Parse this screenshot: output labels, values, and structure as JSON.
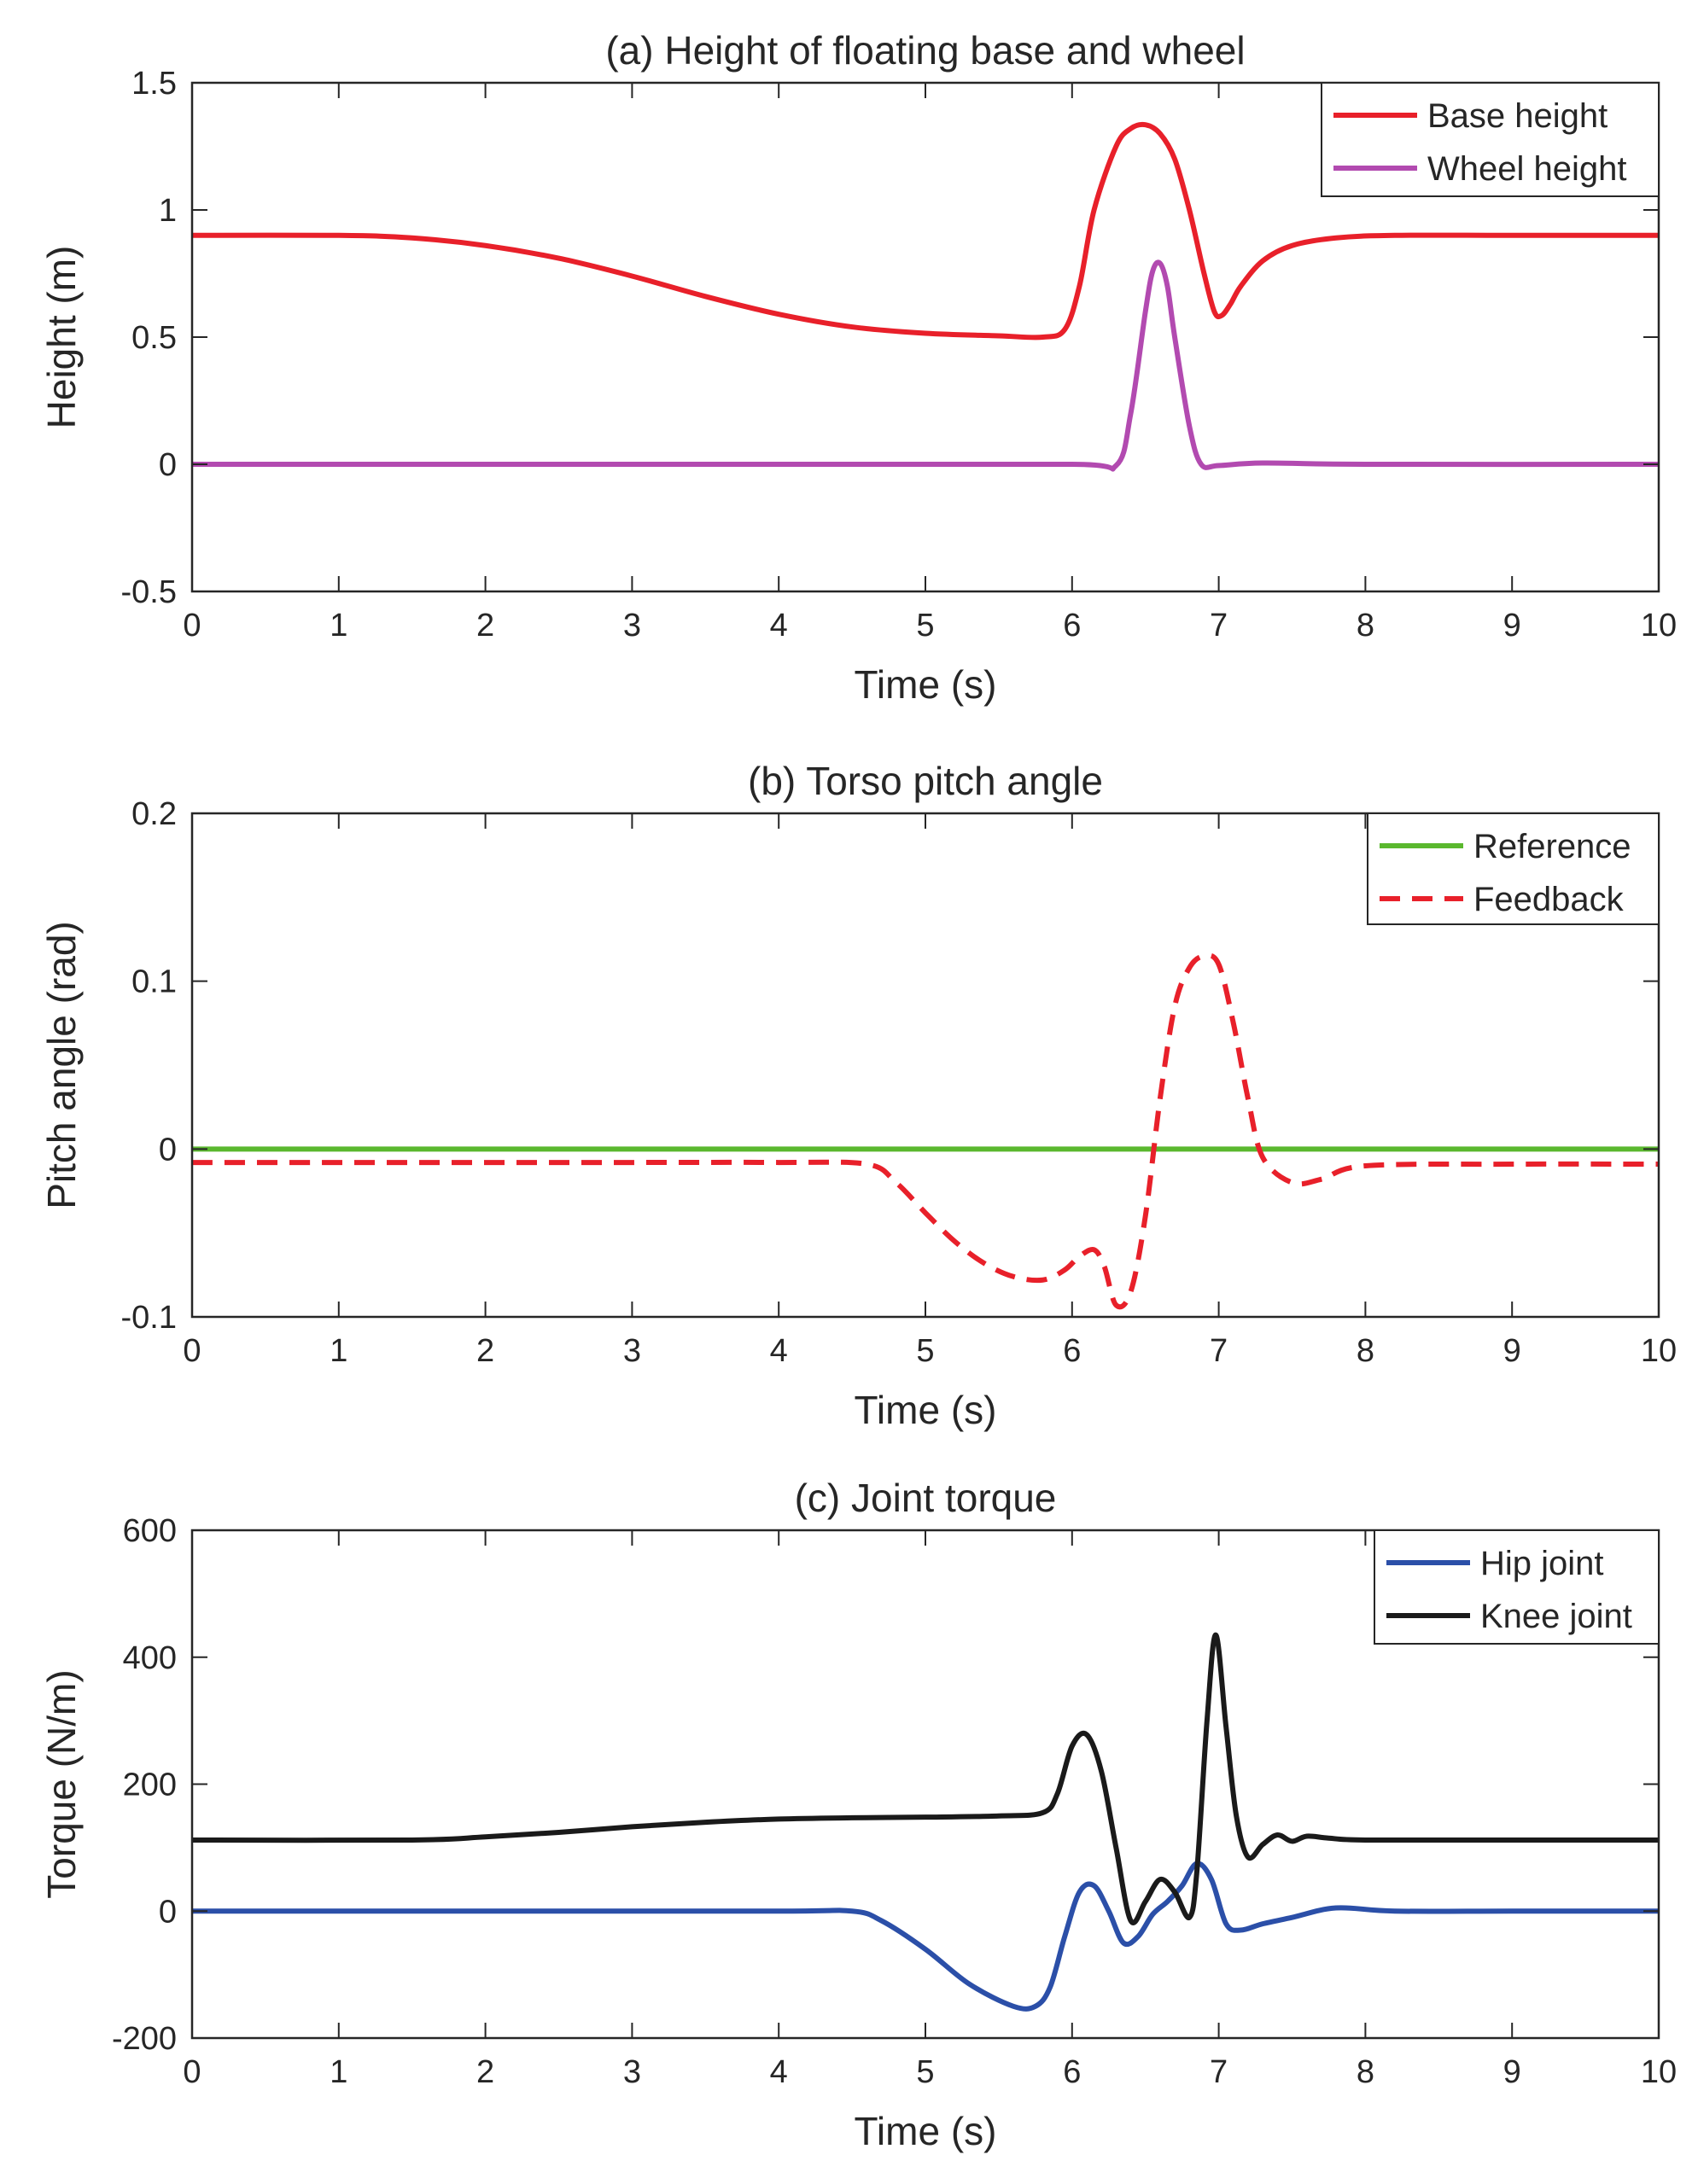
{
  "chart_data": [
    {
      "id": "a",
      "type": "line",
      "title": "(a) Height of floating base and wheel",
      "xlabel": "Time (s)",
      "ylabel": "Height (m)",
      "xlim": [
        0,
        10
      ],
      "ylim": [
        -0.5,
        1.5
      ],
      "xticks": [
        0,
        1,
        2,
        3,
        4,
        5,
        6,
        7,
        8,
        9,
        10
      ],
      "xtick_labels": [
        "0",
        "1",
        "2",
        "3",
        "4",
        "5",
        "6",
        "7",
        "8",
        "9",
        "10"
      ],
      "yticks": [
        -0.5,
        0,
        0.5,
        1,
        1.5
      ],
      "ytick_labels": [
        "-0.5",
        "0",
        "0.5",
        "1",
        "1.5"
      ],
      "grid": false,
      "legend_position": "top-right",
      "series": [
        {
          "name": "Base height",
          "color": "#e8202a",
          "dash": "solid",
          "x": [
            0,
            1,
            1.5,
            2,
            2.5,
            3,
            3.5,
            4,
            4.5,
            5,
            5.5,
            5.8,
            5.95,
            6.05,
            6.15,
            6.3,
            6.4,
            6.5,
            6.6,
            6.7,
            6.8,
            6.9,
            6.97,
            7.02,
            7.08,
            7.15,
            7.3,
            7.5,
            7.8,
            8.2,
            9,
            10
          ],
          "y": [
            0.9,
            0.9,
            0.89,
            0.86,
            0.81,
            0.74,
            0.66,
            0.59,
            0.54,
            0.515,
            0.505,
            0.5,
            0.53,
            0.7,
            1.0,
            1.25,
            1.32,
            1.335,
            1.3,
            1.2,
            1.0,
            0.75,
            0.6,
            0.585,
            0.63,
            0.7,
            0.8,
            0.86,
            0.89,
            0.9,
            0.9,
            0.9
          ]
        },
        {
          "name": "Wheel height",
          "color": "#b24ab0",
          "dash": "solid",
          "x": [
            0,
            2,
            4,
            6,
            6.3,
            6.4,
            6.5,
            6.55,
            6.6,
            6.65,
            6.7,
            6.8,
            6.88,
            7.0,
            7.3,
            8,
            10
          ],
          "y": [
            0,
            0,
            0,
            0,
            -0.005,
            0.2,
            0.6,
            0.76,
            0.79,
            0.7,
            0.5,
            0.15,
            0.0,
            -0.005,
            0.005,
            0,
            0
          ]
        }
      ]
    },
    {
      "id": "b",
      "type": "line",
      "title": "(b) Torso pitch angle",
      "xlabel": "Time (s)",
      "ylabel": "Pitch angle (rad)",
      "xlim": [
        0,
        10
      ],
      "ylim": [
        -0.1,
        0.2
      ],
      "xticks": [
        0,
        1,
        2,
        3,
        4,
        5,
        6,
        7,
        8,
        9,
        10
      ],
      "xtick_labels": [
        "0",
        "1",
        "2",
        "3",
        "4",
        "5",
        "6",
        "7",
        "8",
        "9",
        "10"
      ],
      "yticks": [
        -0.1,
        0,
        0.1,
        0.2
      ],
      "ytick_labels": [
        "-0.1",
        "0",
        "0.1",
        "0.2"
      ],
      "grid": false,
      "legend_position": "top-right",
      "series": [
        {
          "name": "Reference",
          "color": "#5ab82e",
          "dash": "solid",
          "x": [
            0,
            10
          ],
          "y": [
            0,
            0
          ]
        },
        {
          "name": "Feedback",
          "color": "#e8202a",
          "dash": "dashed",
          "x": [
            0,
            1,
            2,
            3,
            4,
            4.6,
            4.8,
            5.0,
            5.2,
            5.4,
            5.6,
            5.8,
            5.95,
            6.05,
            6.15,
            6.22,
            6.3,
            6.4,
            6.5,
            6.6,
            6.7,
            6.8,
            6.9,
            7.0,
            7.1,
            7.2,
            7.3,
            7.5,
            7.7,
            8,
            9,
            10
          ],
          "y": [
            -0.008,
            -0.008,
            -0.008,
            -0.008,
            -0.008,
            -0.009,
            -0.02,
            -0.038,
            -0.055,
            -0.068,
            -0.076,
            -0.078,
            -0.072,
            -0.064,
            -0.06,
            -0.07,
            -0.093,
            -0.085,
            -0.04,
            0.03,
            0.085,
            0.108,
            0.115,
            0.11,
            0.075,
            0.03,
            -0.005,
            -0.02,
            -0.018,
            -0.01,
            -0.009,
            -0.009
          ]
        }
      ]
    },
    {
      "id": "c",
      "type": "line",
      "title": "(c) Joint torque",
      "xlabel": "Time (s)",
      "ylabel": "Torque (N/m)",
      "xlim": [
        0,
        10
      ],
      "ylim": [
        -200,
        600
      ],
      "xticks": [
        0,
        1,
        2,
        3,
        4,
        5,
        6,
        7,
        8,
        9,
        10
      ],
      "xtick_labels": [
        "0",
        "1",
        "2",
        "3",
        "4",
        "5",
        "6",
        "7",
        "8",
        "9",
        "10"
      ],
      "yticks": [
        -200,
        0,
        200,
        400,
        600
      ],
      "ytick_labels": [
        "-200",
        "0",
        "200",
        "400",
        "600"
      ],
      "grid": false,
      "legend_position": "top-right",
      "series": [
        {
          "name": "Hip joint",
          "color": "#2b4fa8",
          "dash": "solid",
          "x": [
            0,
            2,
            4,
            4.5,
            4.7,
            5.0,
            5.3,
            5.6,
            5.75,
            5.85,
            5.95,
            6.05,
            6.15,
            6.25,
            6.35,
            6.45,
            6.55,
            6.65,
            6.75,
            6.85,
            6.95,
            7.05,
            7.15,
            7.3,
            7.5,
            7.8,
            8.2,
            9,
            10
          ],
          "y": [
            0,
            0,
            0,
            0,
            -15,
            -60,
            -115,
            -150,
            -150,
            -120,
            -40,
            30,
            40,
            0,
            -50,
            -40,
            -5,
            15,
            40,
            75,
            50,
            -20,
            -30,
            -20,
            -10,
            5,
            0,
            0,
            0
          ]
        },
        {
          "name": "Knee joint",
          "color": "#1a1a1a",
          "dash": "solid",
          "x": [
            0,
            1.5,
            2,
            2.5,
            3,
            3.5,
            4,
            4.5,
            5,
            5.5,
            5.8,
            5.9,
            6.0,
            6.1,
            6.2,
            6.3,
            6.4,
            6.5,
            6.6,
            6.7,
            6.8,
            6.85,
            6.92,
            6.98,
            7.05,
            7.12,
            7.2,
            7.3,
            7.4,
            7.5,
            7.6,
            7.75,
            8,
            9,
            10
          ],
          "y": [
            112,
            112,
            117,
            124,
            133,
            140,
            145,
            147,
            148,
            150,
            155,
            185,
            260,
            278,
            220,
            100,
            -15,
            15,
            50,
            30,
            -10,
            60,
            300,
            435,
            290,
            150,
            85,
            105,
            120,
            110,
            118,
            115,
            112,
            112,
            112
          ]
        }
      ]
    }
  ]
}
